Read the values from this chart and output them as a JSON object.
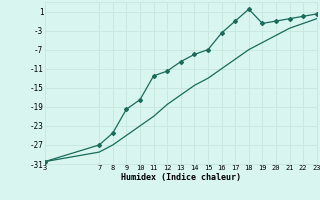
{
  "xlabel": "Humidex (Indice chaleur)",
  "bg_color": "#d8f5f0",
  "grid_color": "#c8e8e0",
  "line_color": "#1a6b5a",
  "xlim": [
    3,
    23
  ],
  "ylim": [
    -31,
    3
  ],
  "xticks": [
    3,
    7,
    8,
    9,
    10,
    11,
    12,
    13,
    14,
    15,
    16,
    17,
    18,
    19,
    20,
    21,
    22,
    23
  ],
  "yticks": [
    1,
    -3,
    -7,
    -11,
    -15,
    -19,
    -23,
    -27,
    -31
  ],
  "line1_x": [
    3,
    7,
    8,
    9,
    10,
    11,
    12,
    13,
    14,
    15,
    16,
    17,
    18,
    19,
    20,
    21,
    22,
    23
  ],
  "line1_y": [
    -30.5,
    -27.0,
    -24.5,
    -19.5,
    -17.5,
    -12.5,
    -11.5,
    -9.5,
    -8.0,
    -7.0,
    -3.5,
    -1.0,
    1.5,
    -1.5,
    -1.0,
    -0.5,
    0.0,
    0.5
  ],
  "line2_x": [
    3,
    7,
    8,
    9,
    10,
    11,
    12,
    13,
    14,
    15,
    16,
    17,
    18,
    19,
    20,
    21,
    22,
    23
  ],
  "line2_y": [
    -30.5,
    -28.5,
    -27.0,
    -25.0,
    -23.0,
    -21.0,
    -18.5,
    -16.5,
    -14.5,
    -13.0,
    -11.0,
    -9.0,
    -7.0,
    -5.5,
    -4.0,
    -2.5,
    -1.5,
    -0.5
  ]
}
